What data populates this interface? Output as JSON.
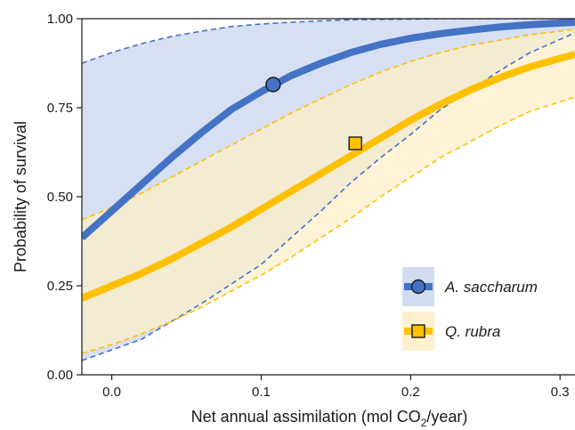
{
  "chart_data": {
    "type": "line",
    "xlabel_prefix": "Net annual assimilation (mol CO",
    "xlabel_sub": "2",
    "xlabel_suffix": "/year)",
    "ylabel": "Probability of survival",
    "xlim": [
      -0.02,
      0.31
    ],
    "ylim": [
      0.0,
      1.0
    ],
    "x_ticks": [
      {
        "value": 0.0,
        "label": "0.0"
      },
      {
        "value": 0.1,
        "label": "0.1"
      },
      {
        "value": 0.2,
        "label": "0.2"
      },
      {
        "value": 0.3,
        "label": "0.3"
      }
    ],
    "y_ticks": [
      {
        "value": 0.0,
        "label": "0.00"
      },
      {
        "value": 0.25,
        "label": "0.25"
      },
      {
        "value": 0.5,
        "label": "0.50"
      },
      {
        "value": 0.75,
        "label": "0.75"
      },
      {
        "value": 1.0,
        "label": "1.00"
      }
    ],
    "legend_position": "bottom-right",
    "series": [
      {
        "name": "A. saccharum",
        "color": "#4472C4",
        "band_color": "#C9D6EE",
        "marker": "circle",
        "marker_point": {
          "x": 0.108,
          "y": 0.815
        },
        "x": [
          -0.02,
          0.0,
          0.02,
          0.04,
          0.06,
          0.08,
          0.1,
          0.12,
          0.14,
          0.16,
          0.18,
          0.2,
          0.22,
          0.24,
          0.26,
          0.28,
          0.31
        ],
        "y": [
          0.385,
          0.46,
          0.535,
          0.61,
          0.68,
          0.745,
          0.795,
          0.84,
          0.875,
          0.905,
          0.928,
          0.945,
          0.958,
          0.968,
          0.977,
          0.983,
          0.99
        ],
        "lower": [
          0.04,
          0.07,
          0.1,
          0.15,
          0.2,
          0.255,
          0.31,
          0.385,
          0.46,
          0.54,
          0.61,
          0.675,
          0.745,
          0.8,
          0.855,
          0.905,
          0.96
        ],
        "upper": [
          0.875,
          0.905,
          0.93,
          0.95,
          0.965,
          0.978,
          0.985,
          0.99,
          0.994,
          0.997,
          0.998,
          0.999,
          1.0,
          1.0,
          1.0,
          1.0,
          1.0
        ]
      },
      {
        "name": "Q. rubra",
        "color": "#FFC000",
        "band_color": "#FDEFC8",
        "marker": "square",
        "marker_point": {
          "x": 0.163,
          "y": 0.65
        },
        "x": [
          -0.02,
          0.0,
          0.02,
          0.04,
          0.06,
          0.08,
          0.1,
          0.12,
          0.14,
          0.16,
          0.18,
          0.2,
          0.22,
          0.24,
          0.26,
          0.28,
          0.31
        ],
        "y": [
          0.215,
          0.25,
          0.285,
          0.325,
          0.37,
          0.415,
          0.465,
          0.515,
          0.565,
          0.615,
          0.665,
          0.715,
          0.76,
          0.8,
          0.835,
          0.865,
          0.9
        ],
        "lower": [
          0.06,
          0.085,
          0.115,
          0.15,
          0.19,
          0.235,
          0.28,
          0.33,
          0.385,
          0.44,
          0.5,
          0.555,
          0.61,
          0.655,
          0.7,
          0.74,
          0.78
        ],
        "upper": [
          0.435,
          0.47,
          0.51,
          0.555,
          0.6,
          0.645,
          0.69,
          0.735,
          0.775,
          0.815,
          0.85,
          0.88,
          0.905,
          0.925,
          0.94,
          0.955,
          0.97
        ]
      }
    ]
  }
}
